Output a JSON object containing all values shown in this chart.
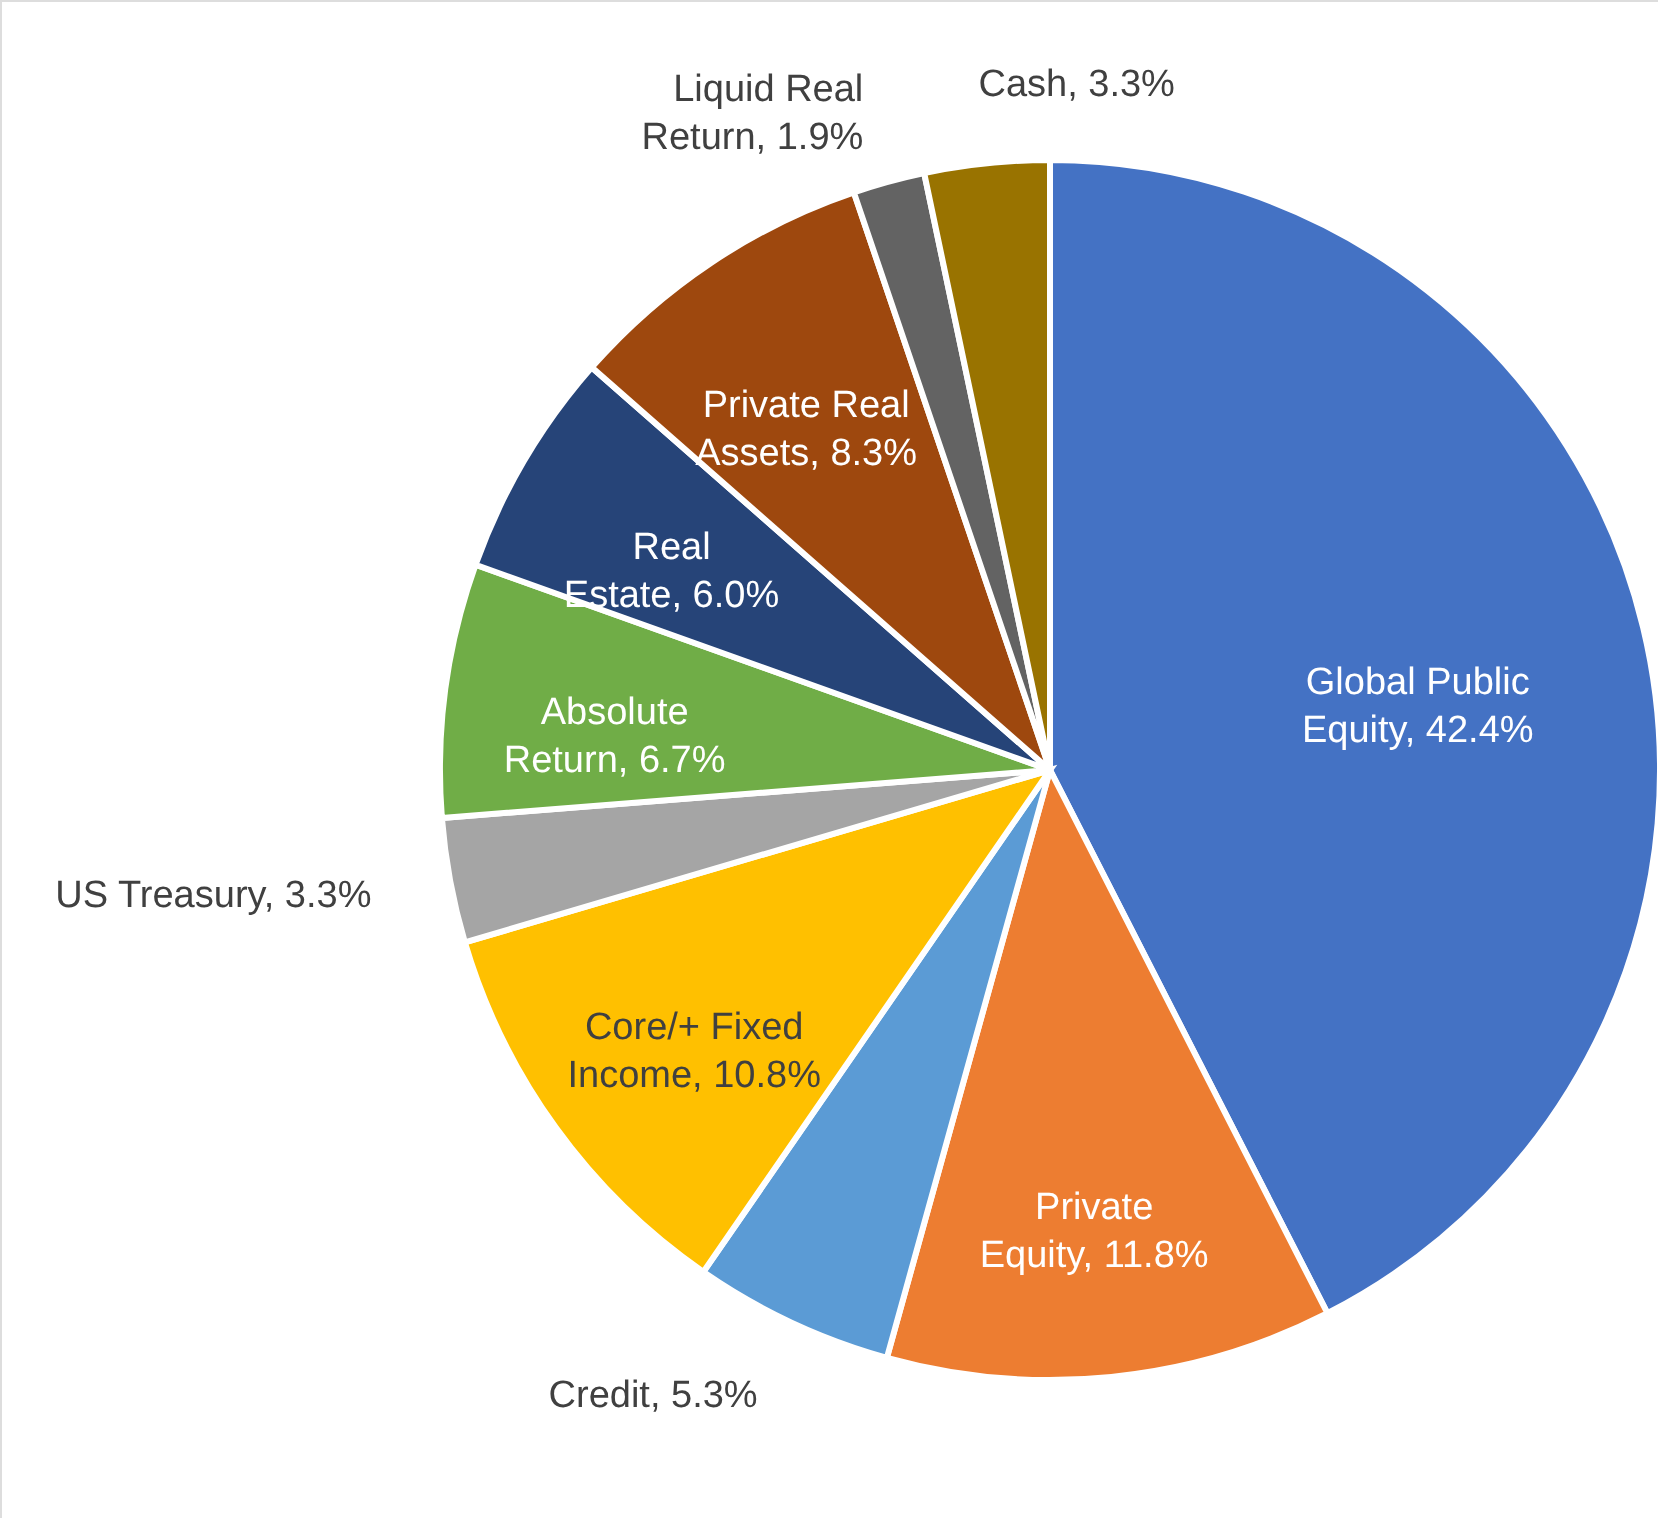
{
  "chart_data": {
    "type": "pie",
    "categories": [
      "Global Public Equity",
      "Private Equity",
      "Credit",
      "Core/+ Fixed Income",
      "US Treasury",
      "Absolute Return",
      "Real Estate",
      "Private Real Assets",
      "Liquid Real Return",
      "Cash"
    ],
    "values": [
      42.4,
      11.8,
      5.3,
      10.8,
      3.3,
      6.7,
      6.0,
      8.3,
      1.9,
      3.3
    ],
    "value_labels": [
      "42.4%",
      "11.8%",
      "5.3%",
      "10.8%",
      "3.3%",
      "6.7%",
      "6.0%",
      "8.3%",
      "1.9%",
      "3.3%"
    ],
    "colors": [
      "#4472c4",
      "#ed7d31",
      "#5b9bd5",
      "#ffc000",
      "#a5a5a5",
      "#70ad47",
      "#264478",
      "#9e480e",
      "#636363",
      "#997300"
    ]
  }
}
